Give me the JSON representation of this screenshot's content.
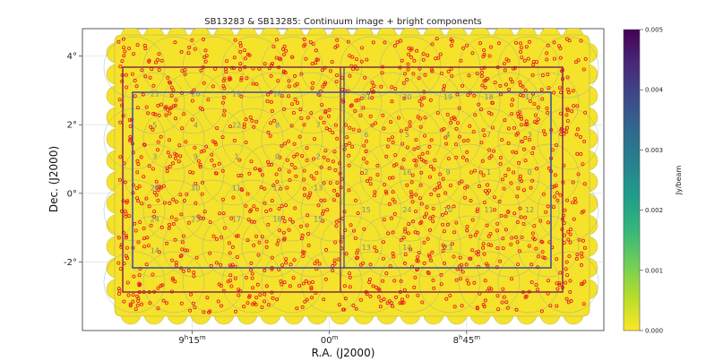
{
  "chart_data": {
    "type": "heatmap",
    "title": "SB13283 & SB13285: Continuum image + bright components",
    "xlabel": "R.A. (J2000)",
    "ylabel": "Dec. (J2000)",
    "x_ticks": [
      {
        "pre": "9",
        "sup1": "h",
        "mid": "15",
        "sup2": "m",
        "ra_min": 555
      },
      {
        "pre": "",
        "sup1": "",
        "mid": "00",
        "sup2": "m",
        "ra_min": 540
      },
      {
        "pre": "8",
        "sup1": "h",
        "mid": "45",
        "sup2": "m",
        "ra_min": 525
      }
    ],
    "y_ticks": [
      {
        "label": "4°",
        "dec": 4
      },
      {
        "label": "2°",
        "dec": 2
      },
      {
        "label": "0°",
        "dec": 0
      },
      {
        "label": "-2°",
        "dec": -2
      }
    ],
    "ra_range_min": [
      567,
      510
    ],
    "dec_range": [
      -4.0,
      4.8
    ],
    "colorbar": {
      "label": "Jy/beam",
      "range": [
        0.0,
        0.005
      ],
      "ticks": [
        "0.000",
        "0.001",
        "0.002",
        "0.003",
        "0.004",
        "0.005"
      ],
      "tick_values": [
        0.0,
        0.001,
        0.002,
        0.003,
        0.004,
        0.005
      ],
      "colors": [
        "#fde725",
        "#b5de2b",
        "#6ece58",
        "#35b779",
        "#1f9e89",
        "#26828e",
        "#31688e",
        "#3e4989",
        "#482878",
        "#440154"
      ]
    },
    "image_color": "#f5e22b",
    "component_color": "#e8141a",
    "beam_circle_color": "#7f9f9f",
    "outer_box_color": "#7b1f4d",
    "inner_box_color": "#2a3fb0",
    "beam_numbers": {
      "left_field": [
        "21",
        "20",
        "19",
        "18",
        "6",
        "5",
        "4",
        "22",
        "8",
        "7",
        "3",
        "9",
        "1",
        "0",
        "2",
        "25",
        "10",
        "11",
        "12",
        "13",
        "24",
        "23",
        "17",
        "16",
        "15",
        "14"
      ],
      "right_field": [
        "21",
        "20",
        "19",
        "18",
        "17",
        "6",
        "5",
        "4",
        "7",
        "3",
        "2",
        "16",
        "9",
        "1",
        "0",
        "15",
        "24",
        "10",
        "11",
        "12",
        "13",
        "14",
        "23"
      ]
    }
  }
}
